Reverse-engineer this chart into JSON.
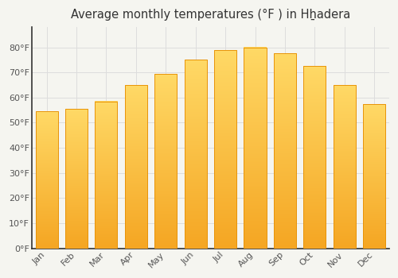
{
  "title": "Average monthly temperatures (°F ) in Hẖ̣adera",
  "months": [
    "Jan",
    "Feb",
    "Mar",
    "Apr",
    "May",
    "Jun",
    "Jul",
    "Aug",
    "Sep",
    "Oct",
    "Nov",
    "Dec"
  ],
  "values": [
    54.5,
    55.5,
    58.5,
    65.0,
    69.5,
    75.0,
    79.0,
    80.0,
    77.5,
    72.5,
    65.0,
    57.5
  ],
  "bar_color_bottom": "#F5A623",
  "bar_color_top": "#FFD966",
  "bar_edge_color": "#E8940A",
  "background_color": "#F5F5F0",
  "plot_bg_color": "#F5F5F0",
  "grid_color": "#DDDDDD",
  "ylim": [
    0,
    88
  ],
  "yticks": [
    0,
    10,
    20,
    30,
    40,
    50,
    60,
    70,
    80
  ],
  "ytick_labels": [
    "0°F",
    "10°F",
    "20°F",
    "30°F",
    "40°F",
    "50°F",
    "60°F",
    "70°F",
    "80°F"
  ],
  "title_fontsize": 10.5,
  "tick_fontsize": 8,
  "bar_width": 0.75,
  "spine_color": "#333333",
  "tick_color": "#555555"
}
